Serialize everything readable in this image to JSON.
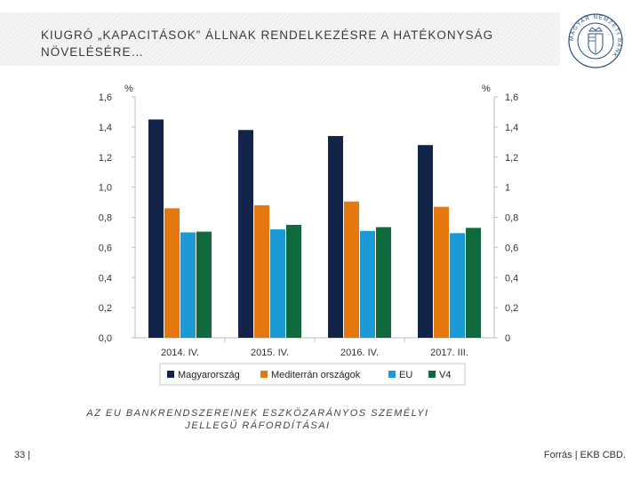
{
  "header": {
    "title": "KIUGRÓ „KAPACITÁSOK” ÁLLNAK RENDELKEZÉSRE A HATÉKONYSÁG NÖVELÉSÉRE…",
    "logo_text": "MAGYAR NEMZETI BANK"
  },
  "chart_data": {
    "type": "bar",
    "categories": [
      "2014. IV.",
      "2015. IV.",
      "2016. IV.",
      "2017. III."
    ],
    "series": [
      {
        "name": "Magyarország",
        "color": "#12244a",
        "values": [
          1.45,
          1.38,
          1.34,
          1.28
        ]
      },
      {
        "name": "Mediterrán országok",
        "color": "#e4780f",
        "values": [
          0.86,
          0.88,
          0.905,
          0.87
        ]
      },
      {
        "name": "EU",
        "color": "#1b9ad6",
        "values": [
          0.7,
          0.72,
          0.71,
          0.695
        ]
      },
      {
        "name": "V4",
        "color": "#0f6b3e",
        "values": [
          0.705,
          0.75,
          0.735,
          0.73
        ]
      }
    ],
    "ylim": [
      0,
      1.6
    ],
    "y_left_unit": "%",
    "y_right_unit": "%",
    "y_left_ticks": [
      "0,0",
      "0,2",
      "0,4",
      "0,6",
      "0,8",
      "1,0",
      "1,2",
      "1,4",
      "1,6"
    ],
    "y_right_ticks": [
      "0",
      "0,2",
      "0,4",
      "0,6",
      "0,8",
      "1",
      "1,2",
      "1,4",
      "1,6"
    ],
    "legend_position": "bottom",
    "grid": false
  },
  "footer": {
    "caption": "AZ EU BANKRENDSZEREINEK ESZKÖZARÁNYOS SZEMÉLYI JELLEGŰ RÁFORDÍTÁSAI",
    "page_number": "33 |",
    "source": "Forrás | EKB CBD."
  }
}
